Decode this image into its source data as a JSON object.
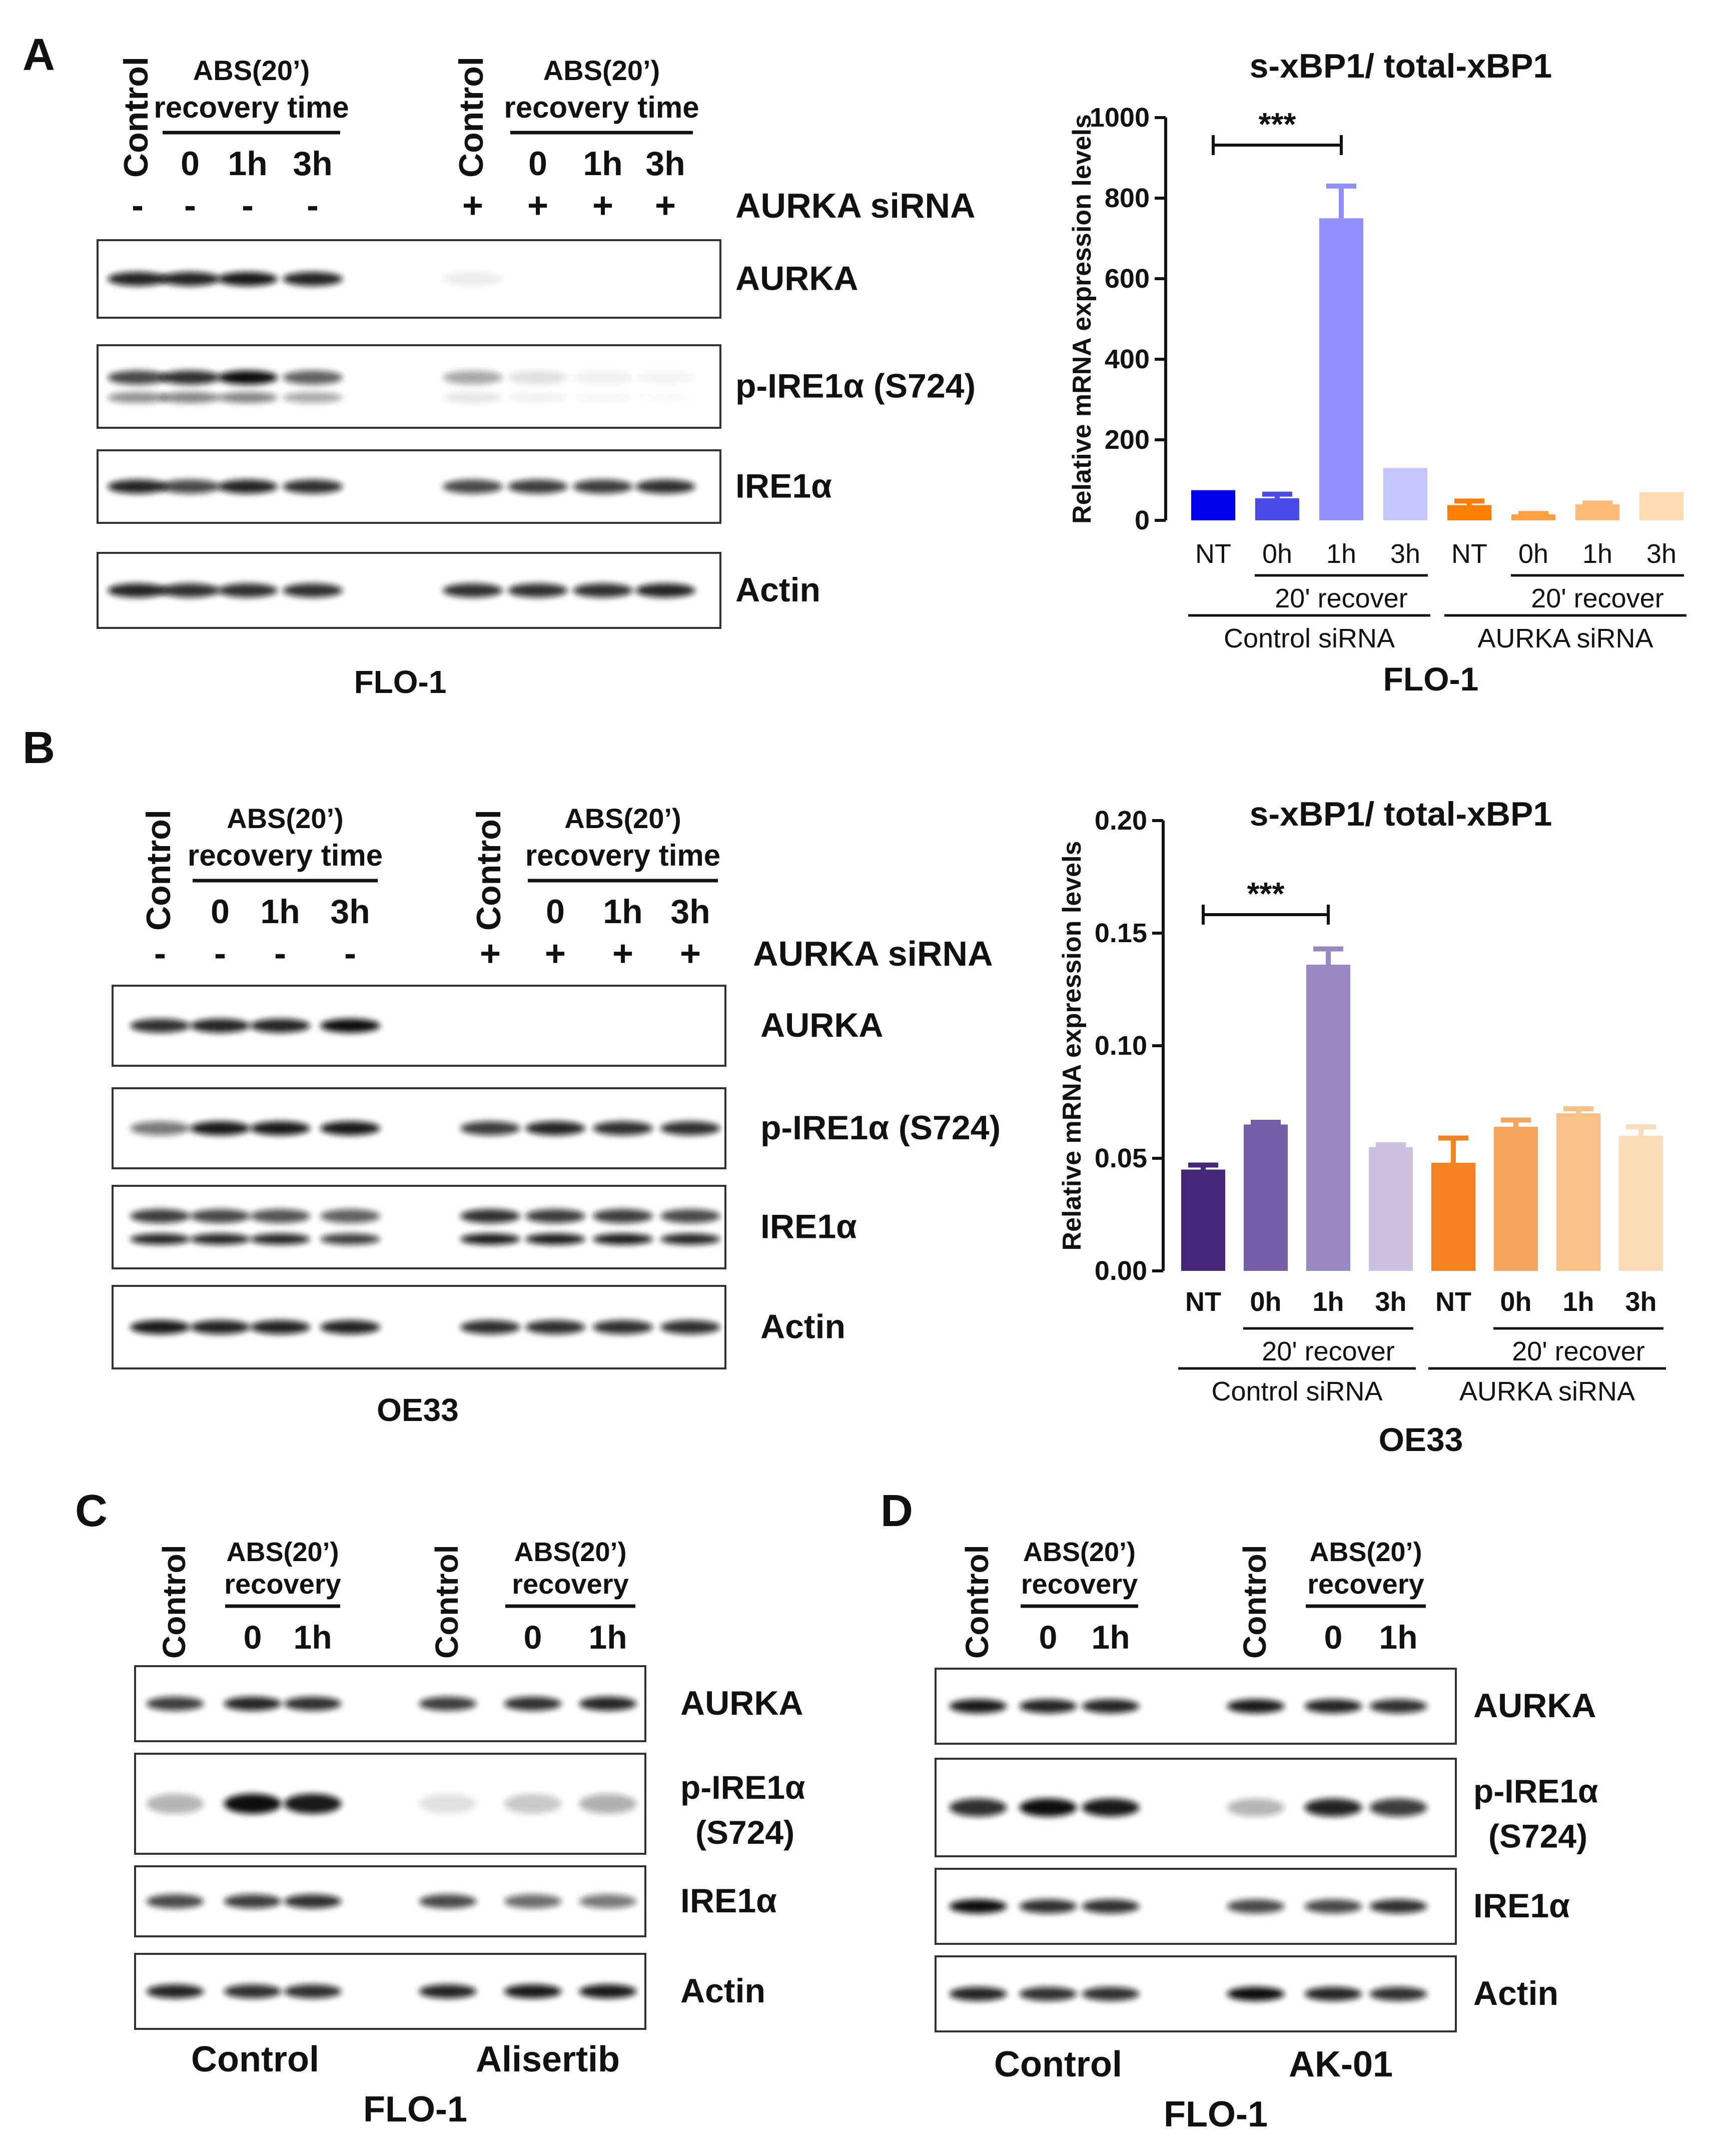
{
  "blot_labels": {
    "control": "Control",
    "abs_line1": "ABS(20’)",
    "abs_line2": "recovery time",
    "abs_short2": "recovery",
    "t0": "0",
    "t1": "1h",
    "t3": "3h",
    "minus": "-",
    "plus": "+",
    "sirna": "AURKA siRNA",
    "aurka": "AURKA",
    "p_ire": "p-IRE1α (S724)",
    "p_ire_l1": "p-IRE1α",
    "p_ire_l2": "(S724)",
    "ire": "IRE1α",
    "actin": "Actin"
  },
  "panels": {
    "A": {
      "letter": "A",
      "cell_line": "FLO-1"
    },
    "B": {
      "letter": "B",
      "cell_line": "OE33"
    },
    "C": {
      "letter": "C",
      "cell_line": "FLO-1",
      "group1": "Control",
      "group2": "Alisertib"
    },
    "D": {
      "letter": "D",
      "cell_line": "FLO-1",
      "group1": "Control",
      "group2": "AK-01"
    }
  },
  "colors": {
    "A": [
      "#0000ee",
      "#4a4ae6",
      "#8f8fff",
      "#c6c6ff",
      "#ff7f00",
      "#ff9e42",
      "#ffbb78",
      "#ffd9b0"
    ],
    "B": [
      "#46267a",
      "#765da8",
      "#9b87c2",
      "#cdc0e0",
      "#f58220",
      "#f6a55c",
      "#f8c188",
      "#fcdcb8"
    ]
  },
  "chart_data": [
    {
      "type": "bar",
      "title": "s-xBP1/ total-xBP1",
      "xlabel": "FLO-1",
      "ylabel": "Relative mRNA expression levels",
      "categories": [
        "NT",
        "0h",
        "1h",
        "3h",
        "NT",
        "0h",
        "1h",
        "3h"
      ],
      "values": [
        75,
        55,
        750,
        130,
        38,
        15,
        40,
        70
      ],
      "errors": [
        0,
        10,
        80,
        0,
        10,
        2,
        3,
        0
      ],
      "ylim": [
        0,
        1000
      ],
      "yticks": [
        0,
        200,
        400,
        600,
        800,
        1000
      ],
      "ytick_labels": [
        "0",
        "200",
        "400",
        "600",
        "800",
        "1000"
      ],
      "groups": [
        {
          "name": "Control siRNA",
          "sub": "20' recover"
        },
        {
          "name": "AURKA siRNA",
          "sub": "20' recover"
        }
      ],
      "annotations": [
        {
          "text": "***",
          "from": 0,
          "to": 2
        }
      ]
    },
    {
      "type": "bar",
      "title": "s-xBP1/ total-xBP1",
      "xlabel": "OE33",
      "ylabel": "Relative mRNA expression levels",
      "categories": [
        "NT",
        "0h",
        "1h",
        "3h",
        "NT",
        "0h",
        "1h",
        "3h"
      ],
      "values": [
        0.045,
        0.065,
        0.136,
        0.055,
        0.048,
        0.064,
        0.07,
        0.06
      ],
      "errors": [
        0.002,
        0.001,
        0.007,
        0.001,
        0.011,
        0.003,
        0.002,
        0.004
      ],
      "ylim": [
        0,
        0.2
      ],
      "yticks": [
        0,
        0.05,
        0.1,
        0.15,
        0.2
      ],
      "ytick_labels": [
        "0.00",
        "0.05",
        "0.10",
        "0.15",
        "0.20"
      ],
      "groups": [
        {
          "name": "Control siRNA",
          "sub": "20' recover"
        },
        {
          "name": "AURKA siRNA",
          "sub": "20' recover"
        }
      ],
      "annotations": [
        {
          "text": "***",
          "from": 0,
          "to": 2
        }
      ]
    }
  ]
}
